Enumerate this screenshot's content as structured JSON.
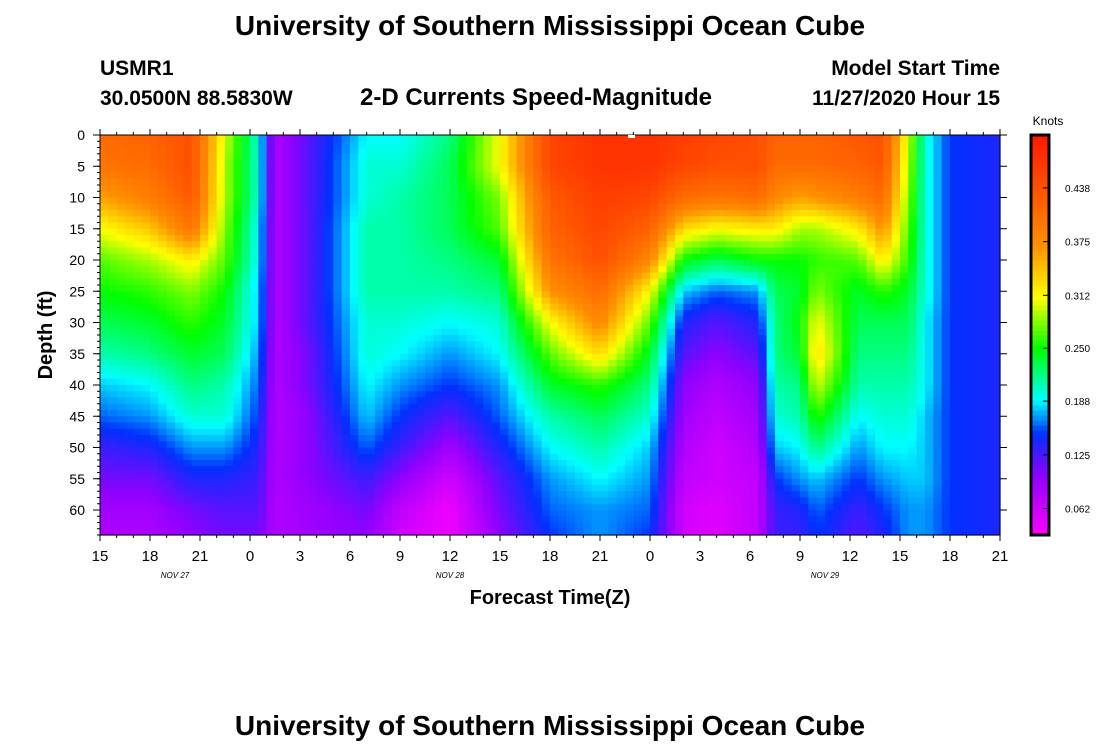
{
  "header": {
    "title": "University of Southern Mississippi Ocean Cube",
    "station_id": "USMR1",
    "coordinates": "30.0500N 88.5830W",
    "subtitle": "2-D Currents Speed-Magnitude",
    "model_start_label": "Model Start Time",
    "model_start_value": "11/27/2020 Hour 15"
  },
  "footer": {
    "title": "University of Southern Mississippi Ocean Cube"
  },
  "chart_data": {
    "type": "heatmap",
    "title": "2-D Currents Speed-Magnitude",
    "xlabel": "Forecast Time(Z)",
    "ylabel": "Depth (ft)",
    "colorbar_label": "Knots",
    "x_tick_labels": [
      "15",
      "18",
      "21",
      "0",
      "3",
      "6",
      "9",
      "12",
      "15",
      "18",
      "21",
      "0",
      "3",
      "6",
      "9",
      "12",
      "15",
      "18",
      "21"
    ],
    "x_tick_hours": [
      0,
      3,
      6,
      9,
      12,
      15,
      18,
      21,
      24,
      27,
      30,
      33,
      36,
      39,
      42,
      45,
      48,
      51,
      54
    ],
    "date_labels": [
      {
        "text": "NOV  27",
        "hour": 4.5
      },
      {
        "text": "NOV  28",
        "hour": 21
      },
      {
        "text": "NOV  29",
        "hour": 43.5
      }
    ],
    "xlim": [
      0,
      54
    ],
    "y_ticks": [
      0,
      5,
      10,
      15,
      20,
      25,
      30,
      35,
      40,
      45,
      50,
      55,
      60
    ],
    "ylim": [
      0,
      64
    ],
    "colorbar_ticks": [
      0.062,
      0.125,
      0.188,
      0.25,
      0.312,
      0.375,
      0.438
    ],
    "colorbar_tick_labels": [
      "0.062",
      "0.125",
      "0.188",
      "0.250",
      "0.312",
      "0.375",
      "0.438"
    ],
    "colorbar_range": [
      0.031,
      0.5
    ],
    "colors": {
      "magenta": "#ff00ff",
      "purple": "#9000ff",
      "blue": "#0030ff",
      "cyan": "#00ffff",
      "green": "#00ff00",
      "yellow": "#ffff00",
      "orange": "#ff9000",
      "red": "#ff1800"
    },
    "profile_columns_note": "speed in knots by hour; depth_ft = [0,5,10,15,20,25,30,35,40,45,50,55,60,64]",
    "depths_ft": [
      0,
      5,
      10,
      15,
      20,
      25,
      30,
      35,
      40,
      45,
      50,
      55,
      60,
      64
    ],
    "columns": [
      {
        "hour": 0,
        "speed": [
          0.41,
          0.4,
          0.36,
          0.31,
          0.27,
          0.25,
          0.23,
          0.21,
          0.18,
          0.16,
          0.13,
          0.11,
          0.09,
          0.08
        ]
      },
      {
        "hour": 3,
        "speed": [
          0.42,
          0.41,
          0.39,
          0.34,
          0.29,
          0.26,
          0.24,
          0.22,
          0.19,
          0.17,
          0.14,
          0.11,
          0.09,
          0.08
        ]
      },
      {
        "hour": 5.5,
        "speed": [
          0.44,
          0.44,
          0.43,
          0.4,
          0.32,
          0.28,
          0.26,
          0.24,
          0.22,
          0.2,
          0.17,
          0.14,
          0.11,
          0.1
        ]
      },
      {
        "hour": 7.5,
        "speed": [
          0.3,
          0.29,
          0.29,
          0.28,
          0.27,
          0.25,
          0.24,
          0.23,
          0.21,
          0.2,
          0.17,
          0.14,
          0.12,
          0.11
        ]
      },
      {
        "hour": 9.5,
        "speed": [
          0.2,
          0.2,
          0.2,
          0.19,
          0.19,
          0.18,
          0.18,
          0.17,
          0.16,
          0.15,
          0.14,
          0.13,
          0.12,
          0.11
        ]
      },
      {
        "hour": 10.5,
        "speed": [
          0.08,
          0.08,
          0.08,
          0.08,
          0.08,
          0.08,
          0.08,
          0.08,
          0.08,
          0.08,
          0.08,
          0.08,
          0.08,
          0.08
        ]
      },
      {
        "hour": 12.5,
        "speed": [
          0.12,
          0.12,
          0.12,
          0.12,
          0.12,
          0.12,
          0.12,
          0.11,
          0.11,
          0.1,
          0.1,
          0.1,
          0.09,
          0.09
        ]
      },
      {
        "hour": 16,
        "speed": [
          0.19,
          0.2,
          0.2,
          0.21,
          0.21,
          0.21,
          0.2,
          0.2,
          0.19,
          0.18,
          0.16,
          0.13,
          0.11,
          0.1
        ]
      },
      {
        "hour": 18,
        "speed": [
          0.19,
          0.2,
          0.21,
          0.21,
          0.21,
          0.21,
          0.2,
          0.19,
          0.17,
          0.15,
          0.13,
          0.1,
          0.07,
          0.06
        ]
      },
      {
        "hour": 21,
        "speed": [
          0.22,
          0.23,
          0.23,
          0.23,
          0.22,
          0.21,
          0.19,
          0.17,
          0.15,
          0.12,
          0.09,
          0.06,
          0.04,
          0.04
        ]
      },
      {
        "hour": 24,
        "speed": [
          0.31,
          0.31,
          0.28,
          0.27,
          0.24,
          0.22,
          0.2,
          0.19,
          0.17,
          0.16,
          0.14,
          0.12,
          0.11,
          0.1
        ]
      },
      {
        "hour": 27,
        "speed": [
          0.45,
          0.45,
          0.43,
          0.42,
          0.4,
          0.37,
          0.31,
          0.27,
          0.24,
          0.21,
          0.19,
          0.17,
          0.16,
          0.15
        ]
      },
      {
        "hour": 30,
        "speed": [
          0.47,
          0.47,
          0.46,
          0.45,
          0.44,
          0.41,
          0.38,
          0.33,
          0.26,
          0.23,
          0.21,
          0.19,
          0.17,
          0.17
        ]
      },
      {
        "hour": 33,
        "speed": [
          0.47,
          0.47,
          0.45,
          0.42,
          0.38,
          0.31,
          0.27,
          0.24,
          0.22,
          0.2,
          0.18,
          0.17,
          0.16,
          0.15
        ]
      },
      {
        "hour": 35,
        "speed": [
          0.46,
          0.45,
          0.41,
          0.33,
          0.25,
          0.18,
          0.14,
          0.12,
          0.1,
          0.09,
          0.08,
          0.07,
          0.06,
          0.06
        ]
      },
      {
        "hour": 37,
        "speed": [
          0.45,
          0.44,
          0.4,
          0.31,
          0.23,
          0.16,
          0.12,
          0.1,
          0.08,
          0.07,
          0.06,
          0.06,
          0.05,
          0.05
        ]
      },
      {
        "hour": 39.5,
        "speed": [
          0.44,
          0.44,
          0.41,
          0.32,
          0.25,
          0.17,
          0.14,
          0.12,
          0.1,
          0.09,
          0.08,
          0.07,
          0.07,
          0.07
        ]
      },
      {
        "hour": 40.5,
        "speed": [
          0.42,
          0.41,
          0.38,
          0.32,
          0.25,
          0.23,
          0.22,
          0.22,
          0.21,
          0.2,
          0.18,
          0.15,
          0.13,
          0.13
        ]
      },
      {
        "hour": 42,
        "speed": [
          0.42,
          0.41,
          0.36,
          0.29,
          0.25,
          0.24,
          0.25,
          0.24,
          0.22,
          0.21,
          0.19,
          0.17,
          0.14,
          0.13
        ]
      },
      {
        "hour": 43,
        "speed": [
          0.42,
          0.41,
          0.37,
          0.29,
          0.26,
          0.28,
          0.31,
          0.33,
          0.3,
          0.26,
          0.22,
          0.18,
          0.16,
          0.15
        ]
      },
      {
        "hour": 45.5,
        "speed": [
          0.43,
          0.42,
          0.39,
          0.32,
          0.27,
          0.24,
          0.23,
          0.22,
          0.21,
          0.19,
          0.17,
          0.15,
          0.13,
          0.12
        ]
      },
      {
        "hour": 47,
        "speed": [
          0.44,
          0.43,
          0.41,
          0.37,
          0.32,
          0.26,
          0.23,
          0.22,
          0.21,
          0.2,
          0.19,
          0.17,
          0.15,
          0.14
        ]
      },
      {
        "hour": 48.5,
        "speed": [
          0.3,
          0.29,
          0.28,
          0.27,
          0.26,
          0.24,
          0.23,
          0.22,
          0.21,
          0.2,
          0.19,
          0.18,
          0.17,
          0.17
        ]
      },
      {
        "hour": 49.5,
        "speed": [
          0.2,
          0.2,
          0.2,
          0.2,
          0.2,
          0.2,
          0.19,
          0.19,
          0.19,
          0.18,
          0.18,
          0.18,
          0.17,
          0.17
        ]
      },
      {
        "hour": 51,
        "speed": [
          0.15,
          0.15,
          0.15,
          0.15,
          0.15,
          0.15,
          0.15,
          0.15,
          0.15,
          0.15,
          0.15,
          0.15,
          0.15,
          0.15
        ]
      },
      {
        "hour": 54,
        "speed": [
          0.14,
          0.14,
          0.14,
          0.14,
          0.14,
          0.14,
          0.14,
          0.14,
          0.14,
          0.14,
          0.14,
          0.14,
          0.14,
          0.14
        ]
      }
    ]
  }
}
